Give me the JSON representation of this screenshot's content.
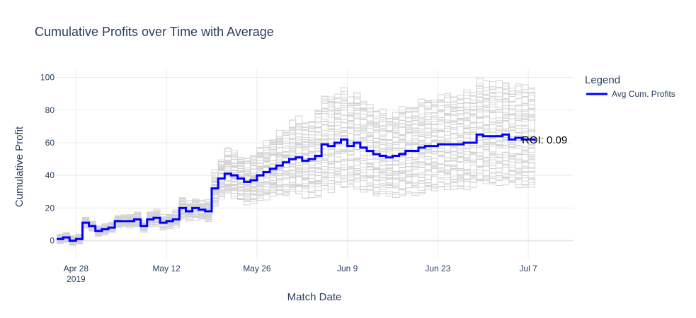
{
  "chart_data": {
    "type": "line",
    "title": "Cumulative Profits over Time with Average",
    "xlabel": "Match Date",
    "ylabel": "Cumulative Profit",
    "x_ticks": [
      {
        "date": "2019-04-28",
        "label": "Apr 28",
        "sublabel": "2019"
      },
      {
        "date": "2019-05-12",
        "label": "May 12",
        "sublabel": ""
      },
      {
        "date": "2019-05-26",
        "label": "May 26",
        "sublabel": ""
      },
      {
        "date": "2019-06-09",
        "label": "Jun 9",
        "sublabel": ""
      },
      {
        "date": "2019-06-23",
        "label": "Jun 23",
        "sublabel": ""
      },
      {
        "date": "2019-07-07",
        "label": "Jul 7",
        "sublabel": ""
      }
    ],
    "y_ticks": [
      "0",
      "20",
      "40",
      "60",
      "80",
      "100"
    ],
    "xlim": [
      "2019-04-25",
      "2019-07-14"
    ],
    "ylim": [
      -11,
      105
    ],
    "grid": true,
    "legend": {
      "title": "Legend",
      "position": "top-right"
    },
    "colors": {
      "average": "#0000ff",
      "simulations": "#d3d3d3"
    },
    "series": [
      {
        "name": "Avg Cum. Profits",
        "role": "average",
        "x": [
          "2019-04-25",
          "2019-04-26",
          "2019-04-27",
          "2019-04-28",
          "2019-04-29",
          "2019-04-30",
          "2019-05-01",
          "2019-05-02",
          "2019-05-03",
          "2019-05-04",
          "2019-05-05",
          "2019-05-06",
          "2019-05-07",
          "2019-05-08",
          "2019-05-09",
          "2019-05-10",
          "2019-05-11",
          "2019-05-12",
          "2019-05-13",
          "2019-05-14",
          "2019-05-15",
          "2019-05-16",
          "2019-05-17",
          "2019-05-18",
          "2019-05-19",
          "2019-05-20",
          "2019-05-21",
          "2019-05-22",
          "2019-05-23",
          "2019-05-24",
          "2019-05-25",
          "2019-05-26",
          "2019-05-27",
          "2019-05-28",
          "2019-05-29",
          "2019-05-30",
          "2019-05-31",
          "2019-06-01",
          "2019-06-02",
          "2019-06-03",
          "2019-06-04",
          "2019-06-05",
          "2019-06-06",
          "2019-06-07",
          "2019-06-08",
          "2019-06-09",
          "2019-06-10",
          "2019-06-11",
          "2019-06-12",
          "2019-06-13",
          "2019-06-14",
          "2019-06-15",
          "2019-06-16",
          "2019-06-17",
          "2019-06-18",
          "2019-06-19",
          "2019-06-20",
          "2019-06-21",
          "2019-06-22",
          "2019-06-23",
          "2019-06-24",
          "2019-06-25",
          "2019-06-26",
          "2019-06-27",
          "2019-06-28",
          "2019-06-29",
          "2019-06-30",
          "2019-07-01",
          "2019-07-02",
          "2019-07-03",
          "2019-07-04",
          "2019-07-05",
          "2019-07-06",
          "2019-07-07",
          "2019-07-08"
        ],
        "y": [
          1,
          2,
          0,
          1,
          11,
          9,
          6,
          7,
          8,
          12,
          12,
          12,
          13,
          9,
          13,
          14,
          11,
          12,
          13,
          20,
          18,
          20,
          19,
          18,
          32,
          38,
          41,
          40,
          38,
          36,
          37,
          40,
          42,
          44,
          46,
          48,
          50,
          51,
          49,
          50,
          52,
          59,
          58,
          60,
          62,
          58,
          60,
          57,
          55,
          53,
          52,
          51,
          52,
          53,
          55,
          55,
          57,
          58,
          58,
          59,
          59,
          59,
          59,
          60,
          60,
          65,
          64,
          64,
          64,
          65,
          62,
          63,
          62,
          62,
          61
        ]
      }
    ],
    "simulations": {
      "count": 50,
      "spread_min": 0.55,
      "spread_max": 1.5
    },
    "annotation": "ROI: 0.09"
  }
}
